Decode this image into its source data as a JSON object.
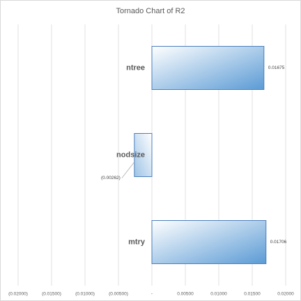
{
  "chart_data": {
    "type": "bar",
    "orientation": "horizontal",
    "title": "Tornado Chart of R2",
    "categories": [
      "ntree",
      "nodsize",
      "mtry"
    ],
    "values": [
      0.01675,
      -0.00262,
      0.01706
    ],
    "value_labels": [
      "0.01675",
      "(0.00262)",
      "0.01706"
    ],
    "color": "#5b9bd5",
    "xlim": [
      -0.02,
      0.02
    ],
    "xticks": [
      {
        "value": -0.02,
        "label": "(0.02000)"
      },
      {
        "value": -0.015,
        "label": "(0.01500)"
      },
      {
        "value": -0.01,
        "label": "(0.01000)"
      },
      {
        "value": -0.005,
        "label": "(0.00500)"
      },
      {
        "value": 0,
        "label": "-"
      },
      {
        "value": 0.005,
        "label": "0.00500"
      },
      {
        "value": 0.01,
        "label": "0.01000"
      },
      {
        "value": 0.015,
        "label": "0.01500"
      },
      {
        "value": 0.02,
        "label": "0.02000"
      }
    ],
    "grid": true
  }
}
